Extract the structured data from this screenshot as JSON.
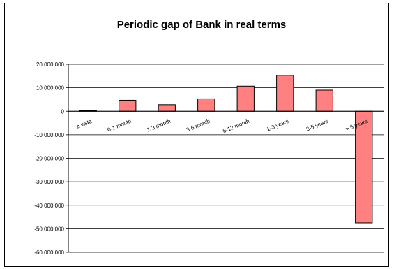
{
  "chart_data": {
    "type": "bar",
    "title": "Periodic gap of Bank in real terms",
    "xlabel": "",
    "ylabel": "",
    "categories": [
      "a vista",
      "0-1 month",
      "1-3 month",
      "3-6 month",
      "6-12 month",
      "1-3 years",
      "3-5 years",
      "> 5 years"
    ],
    "values": [
      500000,
      4700000,
      2800000,
      5300000,
      10700000,
      15300000,
      9000000,
      -47500000
    ],
    "ylim": [
      -60000000,
      20000000
    ],
    "yticks": [
      20000000,
      10000000,
      0,
      -10000000,
      -20000000,
      -30000000,
      -40000000,
      -50000000,
      -60000000
    ],
    "ytick_labels": [
      "20 000 000",
      "10 000 000",
      "0",
      "-10 000 000",
      "-20 000 000",
      "-30 000 000",
      "-40 000 000",
      "-50 000 000",
      "-60 000 000"
    ],
    "grid": true,
    "legend": "none",
    "bar_color": "#ff8080",
    "bar_colors": [
      "#000000",
      "#ff8080",
      "#ff8080",
      "#ff8080",
      "#ff8080",
      "#ff8080",
      "#ff8080",
      "#ff8080"
    ]
  }
}
